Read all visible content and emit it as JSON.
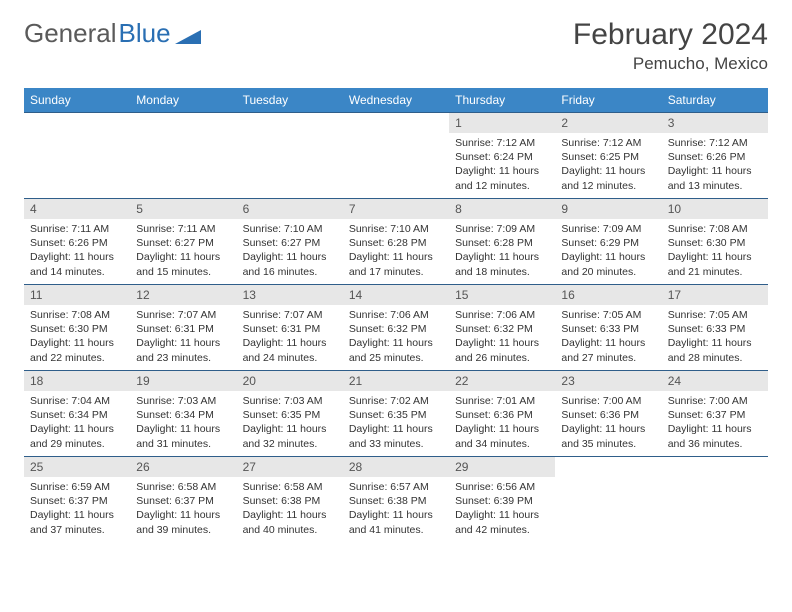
{
  "brand": {
    "part1": "General",
    "part2": "Blue"
  },
  "title": "February 2024",
  "location": "Pemucho, Mexico",
  "colors": {
    "header_bg": "#3b86c6",
    "header_text": "#ffffff",
    "daynum_bg": "#e7e7e7",
    "row_border": "#2f5e8a",
    "logo_gray": "#5a5a5a",
    "logo_blue": "#2a6fb3"
  },
  "weekdays": [
    "Sunday",
    "Monday",
    "Tuesday",
    "Wednesday",
    "Thursday",
    "Friday",
    "Saturday"
  ],
  "weeks": [
    [
      {
        "n": "",
        "sr": "",
        "ss": "",
        "dl": "",
        "empty": true
      },
      {
        "n": "",
        "sr": "",
        "ss": "",
        "dl": "",
        "empty": true
      },
      {
        "n": "",
        "sr": "",
        "ss": "",
        "dl": "",
        "empty": true
      },
      {
        "n": "",
        "sr": "",
        "ss": "",
        "dl": "",
        "empty": true
      },
      {
        "n": "1",
        "sr": "Sunrise: 7:12 AM",
        "ss": "Sunset: 6:24 PM",
        "dl": "Daylight: 11 hours and 12 minutes."
      },
      {
        "n": "2",
        "sr": "Sunrise: 7:12 AM",
        "ss": "Sunset: 6:25 PM",
        "dl": "Daylight: 11 hours and 12 minutes."
      },
      {
        "n": "3",
        "sr": "Sunrise: 7:12 AM",
        "ss": "Sunset: 6:26 PM",
        "dl": "Daylight: 11 hours and 13 minutes."
      }
    ],
    [
      {
        "n": "4",
        "sr": "Sunrise: 7:11 AM",
        "ss": "Sunset: 6:26 PM",
        "dl": "Daylight: 11 hours and 14 minutes."
      },
      {
        "n": "5",
        "sr": "Sunrise: 7:11 AM",
        "ss": "Sunset: 6:27 PM",
        "dl": "Daylight: 11 hours and 15 minutes."
      },
      {
        "n": "6",
        "sr": "Sunrise: 7:10 AM",
        "ss": "Sunset: 6:27 PM",
        "dl": "Daylight: 11 hours and 16 minutes."
      },
      {
        "n": "7",
        "sr": "Sunrise: 7:10 AM",
        "ss": "Sunset: 6:28 PM",
        "dl": "Daylight: 11 hours and 17 minutes."
      },
      {
        "n": "8",
        "sr": "Sunrise: 7:09 AM",
        "ss": "Sunset: 6:28 PM",
        "dl": "Daylight: 11 hours and 18 minutes."
      },
      {
        "n": "9",
        "sr": "Sunrise: 7:09 AM",
        "ss": "Sunset: 6:29 PM",
        "dl": "Daylight: 11 hours and 20 minutes."
      },
      {
        "n": "10",
        "sr": "Sunrise: 7:08 AM",
        "ss": "Sunset: 6:30 PM",
        "dl": "Daylight: 11 hours and 21 minutes."
      }
    ],
    [
      {
        "n": "11",
        "sr": "Sunrise: 7:08 AM",
        "ss": "Sunset: 6:30 PM",
        "dl": "Daylight: 11 hours and 22 minutes."
      },
      {
        "n": "12",
        "sr": "Sunrise: 7:07 AM",
        "ss": "Sunset: 6:31 PM",
        "dl": "Daylight: 11 hours and 23 minutes."
      },
      {
        "n": "13",
        "sr": "Sunrise: 7:07 AM",
        "ss": "Sunset: 6:31 PM",
        "dl": "Daylight: 11 hours and 24 minutes."
      },
      {
        "n": "14",
        "sr": "Sunrise: 7:06 AM",
        "ss": "Sunset: 6:32 PM",
        "dl": "Daylight: 11 hours and 25 minutes."
      },
      {
        "n": "15",
        "sr": "Sunrise: 7:06 AM",
        "ss": "Sunset: 6:32 PM",
        "dl": "Daylight: 11 hours and 26 minutes."
      },
      {
        "n": "16",
        "sr": "Sunrise: 7:05 AM",
        "ss": "Sunset: 6:33 PM",
        "dl": "Daylight: 11 hours and 27 minutes."
      },
      {
        "n": "17",
        "sr": "Sunrise: 7:05 AM",
        "ss": "Sunset: 6:33 PM",
        "dl": "Daylight: 11 hours and 28 minutes."
      }
    ],
    [
      {
        "n": "18",
        "sr": "Sunrise: 7:04 AM",
        "ss": "Sunset: 6:34 PM",
        "dl": "Daylight: 11 hours and 29 minutes."
      },
      {
        "n": "19",
        "sr": "Sunrise: 7:03 AM",
        "ss": "Sunset: 6:34 PM",
        "dl": "Daylight: 11 hours and 31 minutes."
      },
      {
        "n": "20",
        "sr": "Sunrise: 7:03 AM",
        "ss": "Sunset: 6:35 PM",
        "dl": "Daylight: 11 hours and 32 minutes."
      },
      {
        "n": "21",
        "sr": "Sunrise: 7:02 AM",
        "ss": "Sunset: 6:35 PM",
        "dl": "Daylight: 11 hours and 33 minutes."
      },
      {
        "n": "22",
        "sr": "Sunrise: 7:01 AM",
        "ss": "Sunset: 6:36 PM",
        "dl": "Daylight: 11 hours and 34 minutes."
      },
      {
        "n": "23",
        "sr": "Sunrise: 7:00 AM",
        "ss": "Sunset: 6:36 PM",
        "dl": "Daylight: 11 hours and 35 minutes."
      },
      {
        "n": "24",
        "sr": "Sunrise: 7:00 AM",
        "ss": "Sunset: 6:37 PM",
        "dl": "Daylight: 11 hours and 36 minutes."
      }
    ],
    [
      {
        "n": "25",
        "sr": "Sunrise: 6:59 AM",
        "ss": "Sunset: 6:37 PM",
        "dl": "Daylight: 11 hours and 37 minutes."
      },
      {
        "n": "26",
        "sr": "Sunrise: 6:58 AM",
        "ss": "Sunset: 6:37 PM",
        "dl": "Daylight: 11 hours and 39 minutes."
      },
      {
        "n": "27",
        "sr": "Sunrise: 6:58 AM",
        "ss": "Sunset: 6:38 PM",
        "dl": "Daylight: 11 hours and 40 minutes."
      },
      {
        "n": "28",
        "sr": "Sunrise: 6:57 AM",
        "ss": "Sunset: 6:38 PM",
        "dl": "Daylight: 11 hours and 41 minutes."
      },
      {
        "n": "29",
        "sr": "Sunrise: 6:56 AM",
        "ss": "Sunset: 6:39 PM",
        "dl": "Daylight: 11 hours and 42 minutes."
      },
      {
        "n": "",
        "sr": "",
        "ss": "",
        "dl": "",
        "empty": true
      },
      {
        "n": "",
        "sr": "",
        "ss": "",
        "dl": "",
        "empty": true
      }
    ]
  ]
}
